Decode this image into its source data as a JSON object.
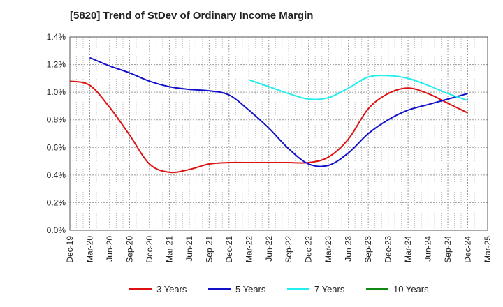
{
  "chart_data": {
    "type": "line",
    "title": "[5820]  Trend of StDev of Ordinary Income Margin",
    "xlabel": "",
    "ylabel": "",
    "ylim": [
      0,
      1.4
    ],
    "y_ticks": [
      "0.0%",
      "0.2%",
      "0.4%",
      "0.6%",
      "0.8%",
      "1.0%",
      "1.2%",
      "1.4%"
    ],
    "x_ticks": [
      "Dec-19",
      "Mar-20",
      "Jun-20",
      "Sep-20",
      "Dec-20",
      "Mar-21",
      "Jun-21",
      "Sep-21",
      "Dec-21",
      "Mar-22",
      "Jun-22",
      "Sep-22",
      "Dec-22",
      "Mar-23",
      "Jun-23",
      "Sep-23",
      "Dec-23",
      "Mar-24",
      "Jun-24",
      "Sep-24",
      "Dec-24",
      "Mar-25"
    ],
    "grid": true,
    "legend_position": "bottom",
    "series": [
      {
        "name": "3 Years",
        "color": "#dd1111",
        "values": [
          1.08,
          1.05,
          0.89,
          0.69,
          0.48,
          0.42,
          0.44,
          0.48,
          0.49,
          0.49,
          0.49,
          0.49,
          0.49,
          0.53,
          0.66,
          0.88,
          0.99,
          1.03,
          0.99,
          0.92,
          0.85,
          null
        ]
      },
      {
        "name": "5 Years",
        "color": "#1111cc",
        "values": [
          null,
          1.25,
          1.19,
          1.14,
          1.08,
          1.04,
          1.02,
          1.01,
          0.98,
          0.87,
          0.74,
          0.59,
          0.48,
          0.47,
          0.56,
          0.7,
          0.8,
          0.87,
          0.91,
          0.95,
          0.99,
          null
        ]
      },
      {
        "name": "7 Years",
        "color": "#22eeee",
        "values": [
          null,
          null,
          null,
          null,
          null,
          null,
          null,
          null,
          null,
          1.09,
          1.04,
          0.99,
          0.95,
          0.96,
          1.03,
          1.11,
          1.12,
          1.1,
          1.05,
          0.99,
          0.94,
          null
        ]
      },
      {
        "name": "10 Years",
        "color": "#118811",
        "values": [
          null,
          null,
          null,
          null,
          null,
          null,
          null,
          null,
          null,
          null,
          null,
          null,
          null,
          null,
          null,
          null,
          null,
          null,
          null,
          null,
          null,
          null
        ]
      }
    ]
  }
}
